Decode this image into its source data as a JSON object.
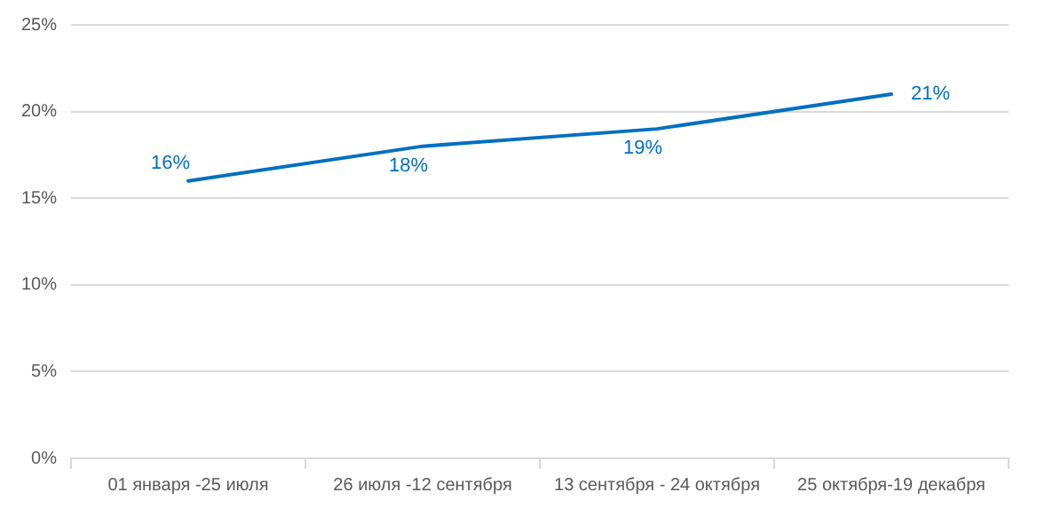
{
  "chart_data": {
    "type": "line",
    "categories": [
      "01 января -25 июля",
      "26 июля -12 сентября",
      "13 сентября - 24 октября",
      "25 октября-19 декабря"
    ],
    "series": [
      {
        "color": "#0070c0",
        "values": [
          16,
          18,
          19,
          21
        ],
        "value_labels": [
          "16%",
          "18%",
          "19%",
          "21%"
        ]
      }
    ],
    "ylim": [
      0,
      25
    ],
    "yticks": [
      {
        "value": 0,
        "label": "0%"
      },
      {
        "value": 5,
        "label": "5%"
      },
      {
        "value": 10,
        "label": "10%"
      },
      {
        "value": 15,
        "label": "15%"
      },
      {
        "value": 20,
        "label": "20%"
      },
      {
        "value": 25,
        "label": "25%"
      }
    ],
    "grid": "y",
    "legend": false,
    "marker": "none",
    "line_style": "solid"
  }
}
